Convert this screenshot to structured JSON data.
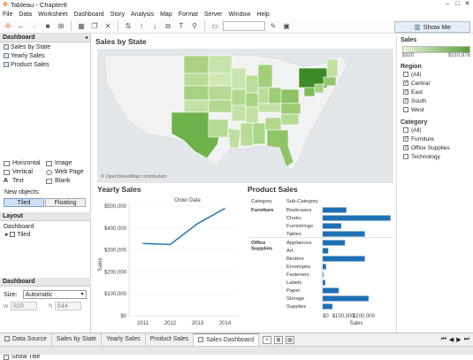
{
  "window": {
    "title": "Tableau - Chapter8"
  },
  "menu": [
    "File",
    "Data",
    "Worksheet",
    "Dashboard",
    "Story",
    "Analysis",
    "Map",
    "Format",
    "Server",
    "Window",
    "Help"
  ],
  "toolbar": {
    "show_me": "Show Me"
  },
  "left_panel": {
    "dashboard_header": "Dashboard",
    "sheets": [
      "Sales by State",
      "Yearly Sales",
      "Product Sales"
    ],
    "objects": [
      "Horizontal",
      "Image",
      "Vertical",
      "Web Page",
      "Text",
      "Blank"
    ],
    "new_objects_label": "New objects:",
    "tiled": "Tiled",
    "floating": "Floating",
    "layout_header": "Layout",
    "layout_root": "Dashboard",
    "layout_child": "Tiled",
    "dashboard2_header": "Dashboard",
    "size_label": "Size:",
    "size_value": "Automatic",
    "w_label": "w",
    "w_value": "819",
    "h_label": "h",
    "h_value": "644",
    "show_title": "Show Title"
  },
  "map_sheet": {
    "title": "Sales by State",
    "attribution": "© OpenStreetMap contributors"
  },
  "yearly_sales": {
    "title": "Yearly Sales",
    "column_header": "Order Date",
    "ylabel": "Sales"
  },
  "product_sales": {
    "title": "Product Sales",
    "col_category": "Category",
    "col_subcategory": "Sub-Category",
    "xlabel": "Sales",
    "categories": [
      {
        "name": "Furniture",
        "subs": [
          "Bookcases",
          "Chairs",
          "Furnishings",
          "Tables"
        ]
      },
      {
        "name": "Office Supplies",
        "subs": [
          "Appliances",
          "Art",
          "Binders",
          "Envelopes",
          "Fasteners",
          "Labels",
          "Paper",
          "Storage",
          "Supplies"
        ]
      }
    ]
  },
  "chart_data": [
    {
      "type": "line",
      "title": "Yearly Sales",
      "x": [
        "2011",
        "2012",
        "2013",
        "2014"
      ],
      "series": [
        {
          "values": [
            330000,
            325000,
            420000,
            490000
          ]
        }
      ],
      "ylabel": "Sales",
      "yticks": [
        "$0",
        "$100,000",
        "$200,000",
        "$300,000",
        "$400,000",
        "$500,000"
      ],
      "ylim": [
        0,
        500000
      ],
      "color": "#1f77b4"
    },
    {
      "type": "bar",
      "title": "Product Sales",
      "orientation": "horizontal",
      "categories": [
        "Bookcases",
        "Chairs",
        "Furnishings",
        "Tables",
        "Appliances",
        "Art",
        "Binders",
        "Envelopes",
        "Fasteners",
        "Labels",
        "Paper",
        "Storage",
        "Supplies"
      ],
      "values": [
        115000,
        330000,
        90000,
        205000,
        108000,
        27000,
        205000,
        16000,
        3000,
        12000,
        78000,
        223000,
        47000
      ],
      "xticks": [
        "$0",
        "$100,000",
        "$200,000"
      ],
      "xlim": [
        0,
        340000
      ],
      "color": "#1f6fb4"
    }
  ],
  "right_panel": {
    "sales_legend_title": "Sales",
    "legend_min": "$920",
    "legend_max": "$310,876",
    "region_title": "Region",
    "regions": [
      {
        "label": "(All)",
        "checked": false
      },
      {
        "label": "Central",
        "checked": true
      },
      {
        "label": "East",
        "checked": true
      },
      {
        "label": "South",
        "checked": true
      },
      {
        "label": "West",
        "checked": false
      }
    ],
    "category_title": "Category",
    "categories": [
      {
        "label": "(All)",
        "checked": false
      },
      {
        "label": "Furniture",
        "checked": true
      },
      {
        "label": "Office Supplies",
        "checked": true
      },
      {
        "label": "Technology",
        "checked": false
      }
    ],
    "accent": "#5b9e3a"
  },
  "tabs": {
    "data_source": "Data Source",
    "items": [
      "Sales by State",
      "Yearly Sales",
      "Product Sales"
    ],
    "active": "Sales Dashboard"
  }
}
